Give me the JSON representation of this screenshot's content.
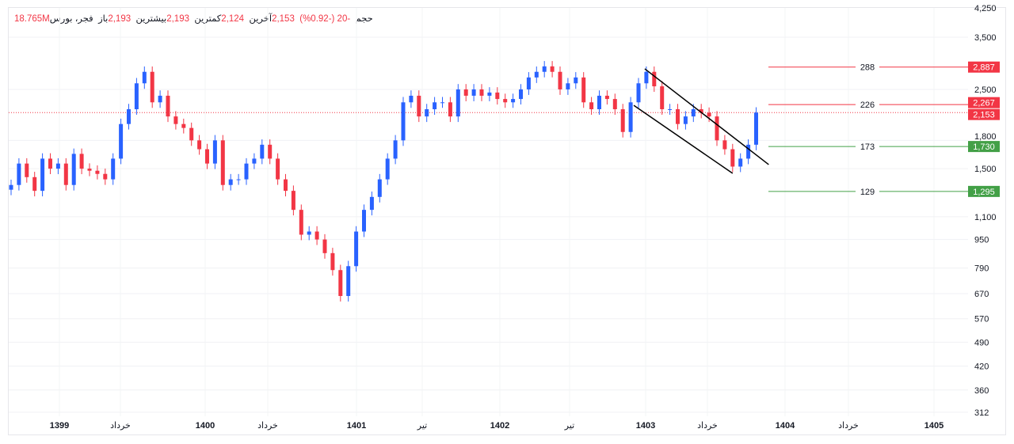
{
  "header": {
    "symbol": "فجر، بورس",
    "open_label": "باز",
    "open": "2,193",
    "high_label": "بیشترین",
    "high": "2,193",
    "low_label": "کمترین",
    "low": "2,124",
    "last_label": "آخرین",
    "last": "2,153",
    "change": "-20 (-0.92%)",
    "volume_label": "حجم",
    "volume": "18.765M"
  },
  "chart_data": {
    "type": "candlestick",
    "y_scale": "log",
    "ylim": [
      312,
      4250
    ],
    "y_ticks": [
      "4,250",
      "3,500",
      "2,500",
      "1,800",
      "1,500",
      "1,100",
      "950",
      "790",
      "670",
      "570",
      "490",
      "420",
      "360",
      "312"
    ],
    "y_tick_values": [
      4250,
      3500,
      2500,
      1800,
      1500,
      1100,
      950,
      790,
      670,
      570,
      490,
      420,
      360,
      312
    ],
    "x_ticks": [
      {
        "label": "1399",
        "bold": true
      },
      {
        "label": "خرداد",
        "bold": false
      },
      {
        "label": "1400",
        "bold": true
      },
      {
        "label": "خرداد",
        "bold": false
      },
      {
        "label": "1401",
        "bold": true
      },
      {
        "label": "تیر",
        "bold": false
      },
      {
        "label": "1402",
        "bold": true
      },
      {
        "label": "تیر",
        "bold": false
      },
      {
        "label": "1403",
        "bold": true
      },
      {
        "label": "خرداد",
        "bold": false
      },
      {
        "label": "1404",
        "bold": true
      },
      {
        "label": "خرداد",
        "bold": false
      },
      {
        "label": "1405",
        "bold": true
      }
    ],
    "close": [
      1350,
      1550,
      1420,
      1300,
      1600,
      1500,
      1550,
      1350,
      1650,
      1500,
      1480,
      1450,
      1400,
      1600,
      2000,
      2200,
      2600,
      2800,
      2300,
      2400,
      2100,
      2000,
      1950,
      1800,
      1700,
      1550,
      1800,
      1350,
      1400,
      1400,
      1550,
      1600,
      1750,
      1600,
      1400,
      1300,
      1150,
      980,
      1000,
      950,
      870,
      780,
      660,
      800,
      1000,
      1150,
      1250,
      1400,
      1600,
      1800,
      2300,
      2400,
      2100,
      2200,
      2300,
      2300,
      2100,
      2500,
      2400,
      2500,
      2400,
      2450,
      2350,
      2300,
      2350,
      2500,
      2700,
      2800,
      2900,
      2800,
      2500,
      2600,
      2700,
      2300,
      2200,
      2400,
      2350,
      2200,
      1900,
      2300,
      2600,
      2800,
      2550,
      2200,
      2200,
      2000,
      2100,
      2200,
      2150,
      2100,
      1800,
      1700,
      1520,
      1600,
      1750,
      2153
    ],
    "up_color": "#2962ff",
    "down_color": "#f23645",
    "last_price": {
      "value": 2153,
      "label": "2,153",
      "color": "#f23645"
    },
    "levels": [
      {
        "value": 2887,
        "tag": "2,887",
        "label": "288",
        "color": "#f23645"
      },
      {
        "value": 2267,
        "tag": "2,267",
        "label": "226",
        "color": "#f23645"
      },
      {
        "value": 1730,
        "tag": "1,730",
        "label": "173",
        "color": "#43a047"
      },
      {
        "value": 1295,
        "tag": "1,295",
        "label": "129",
        "color": "#43a047"
      }
    ],
    "channel": [
      {
        "from": [
          80.8,
          2855
        ],
        "to": [
          96.6,
          1540
        ]
      },
      {
        "from": [
          79.4,
          2255
        ],
        "to": [
          92,
          1455
        ]
      }
    ],
    "grid": true
  }
}
